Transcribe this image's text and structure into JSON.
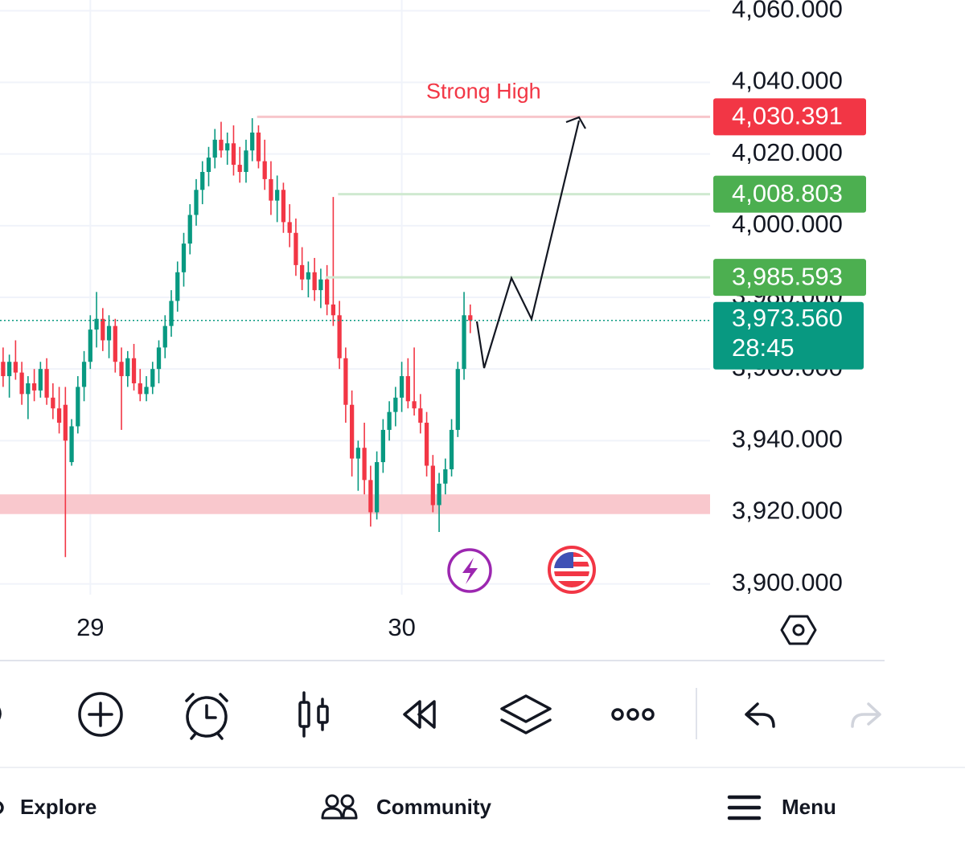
{
  "chart_data": {
    "type": "candlestick",
    "x": [
      28.72,
      28.74,
      28.76,
      28.78,
      28.8,
      28.82,
      28.84,
      28.86,
      28.88,
      28.9,
      28.92,
      28.94,
      28.96,
      28.98,
      29,
      29.02,
      29.04,
      29.06,
      29.08,
      29.1,
      29.12,
      29.14,
      29.16,
      29.18,
      29.2,
      29.22,
      29.24,
      29.26,
      29.28,
      29.3,
      29.32,
      29.34,
      29.36,
      29.38,
      29.4,
      29.42,
      29.44,
      29.46,
      29.48,
      29.5,
      29.52,
      29.54,
      29.56,
      29.58,
      29.6,
      29.62,
      29.64,
      29.66,
      29.68,
      29.7,
      29.72,
      29.74,
      29.76,
      29.78,
      29.8,
      29.82,
      29.84,
      29.86,
      29.88,
      29.9,
      29.92,
      29.94,
      29.96,
      29.98,
      30,
      30.02,
      30.04,
      30.06,
      30.08,
      30.1,
      30.12,
      30.14,
      30.16,
      30.18,
      30.2,
      30.22
    ],
    "open": [
      3962,
      3958,
      3962,
      3959,
      3953,
      3956,
      3954,
      3960,
      3952,
      3949,
      3950,
      3934,
      3944,
      3955,
      3962,
      3971,
      3974,
      3968,
      3972,
      3962,
      3958,
      3963,
      3956,
      3953,
      3955,
      3960,
      3966,
      3972,
      3979,
      3987,
      3995,
      4003,
      4010,
      4015,
      4019,
      4024,
      4021,
      4023,
      4017,
      4015,
      4021,
      4026,
      4018,
      4013,
      4007,
      4010,
      4001,
      3998,
      3989,
      3985,
      3987,
      3982,
      3985,
      3978,
      3975,
      3963,
      3950,
      3935,
      3938,
      3929,
      3920,
      3934,
      3943,
      3948,
      3952,
      3958,
      3951,
      3949,
      3945,
      3933,
      3922,
      3928,
      3932,
      3943,
      3960,
      3975
    ],
    "high": [
      3966,
      3964,
      3968,
      3962,
      3958,
      3960,
      3962,
      3963,
      3956,
      3955,
      3955,
      3946,
      3958,
      3965,
      3975,
      3981.5,
      3977,
      3975,
      3974,
      3966,
      3965,
      3967,
      3960,
      3958,
      3962,
      3968,
      3975,
      3982,
      3990,
      3998,
      4006,
      4013,
      4018,
      4022,
      4027,
      4029,
      4026,
      4028,
      4022,
      4024,
      4030,
      4028,
      4024,
      4018,
      4014,
      4012,
      4006,
      4002,
      3994,
      3990,
      3991,
      3988,
      3989,
      4008,
      3979,
      3966,
      3954,
      3940,
      3945,
      3933,
      3937,
      3946,
      3951,
      3955,
      3962,
      3963,
      3966,
      3953,
      3948,
      3936,
      3931,
      3935,
      3946,
      3962,
      3981.5,
      3978
    ],
    "low": [
      3955,
      3952,
      3957,
      3950,
      3946,
      3951,
      3952,
      3950,
      3946,
      3942,
      3907.5,
      3933,
      3942,
      3951,
      3960,
      3966,
      3965,
      3963,
      3959,
      3943,
      3955,
      3954,
      3951,
      3951,
      3953,
      3956,
      3963,
      3969,
      3976,
      3983,
      3992,
      4000,
      4006,
      4011,
      4016,
      4019,
      4017,
      4014,
      4012,
      4012,
      4018,
      4016,
      4010,
      4003,
      4001,
      3998,
      3994,
      3986,
      3982,
      3980,
      3979,
      3977,
      3975,
      3972,
      3960,
      3945,
      3930,
      3926,
      3925,
      3916,
      3918,
      3931,
      3940,
      3944,
      3948,
      3949,
      3947,
      3942,
      3930,
      3920,
      3914.5,
      3925,
      3930,
      3941,
      3957,
      3970
    ],
    "close": [
      3958,
      3962,
      3959,
      3953,
      3956,
      3954,
      3960,
      3952,
      3949,
      3945,
      3940,
      3944,
      3955,
      3962,
      3971,
      3974,
      3968,
      3972,
      3962,
      3958,
      3963,
      3956,
      3953,
      3955,
      3960,
      3966,
      3972,
      3979,
      3987,
      3995,
      4003,
      4010,
      4015,
      4019,
      4024,
      4021,
      4023,
      4017,
      4015,
      4021,
      4026,
      4018,
      4013,
      4007,
      4010,
      4001,
      3998,
      3989,
      3985,
      3987,
      3982,
      3985,
      3978,
      3975,
      3963,
      3950,
      3935,
      3938,
      3929,
      3920,
      3934,
      3943,
      3948,
      3952,
      3958,
      3951,
      3949,
      3945,
      3933,
      3922,
      3928,
      3932,
      3943,
      3960,
      3975,
      3973.56
    ],
    "up_color": "#089981",
    "down_color": "#f23645",
    "xlim": [
      28.71,
      30.99
    ],
    "ylim": [
      3897,
      4063
    ],
    "xticks": [
      29,
      30
    ],
    "yticks": [
      {
        "value": 4060,
        "label": "4,060.000"
      },
      {
        "value": 4040,
        "label": "4,040.000"
      },
      {
        "value": 4020,
        "label": "4,020.000"
      },
      {
        "value": 4000,
        "label": "4,000.000"
      },
      {
        "value": 3980,
        "label": "3,980.000"
      },
      {
        "value": 3960,
        "label": "3,960.000"
      },
      {
        "value": 3940,
        "label": "3,940.000"
      },
      {
        "value": 3920,
        "label": "3,920.000"
      },
      {
        "value": 3900,
        "label": "3,900.000"
      }
    ],
    "grid": true,
    "price_lines": [
      {
        "value": 4030.391,
        "value_label": "4,030.391",
        "color": "#f23645",
        "line_color": "#f7c6cb",
        "text": "Strong High"
      },
      {
        "value": 4008.803,
        "value_label": "4,008.803",
        "color": "#4caf50",
        "line_color": "#cfe9d0"
      },
      {
        "value": 3985.593,
        "value_label": "3,985.593",
        "color": "#4caf50",
        "line_color": "#cfe9d0"
      }
    ],
    "zone": {
      "top": 3925,
      "bottom": 3919.5,
      "color": "#f9c8cd"
    },
    "last_price": {
      "value": 3973.56,
      "label": "3,973.560",
      "countdown": "28:45",
      "color": "#089981"
    }
  },
  "nav": {
    "items": [
      "Explore",
      "Community",
      "Menu"
    ]
  }
}
